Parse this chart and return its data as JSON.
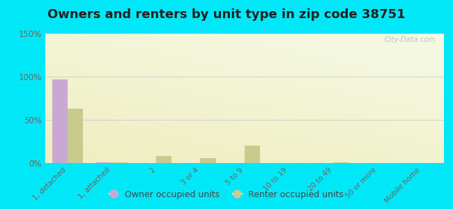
{
  "title": "Owners and renters by unit type in zip code 38751",
  "categories": [
    "1, detached",
    "1, attached",
    "2",
    "3 or 4",
    "5 to 9",
    "10 to 19",
    "20 to 49",
    "50 or more",
    "Mobile home"
  ],
  "owner_values": [
    97,
    1,
    0,
    0,
    0,
    0,
    0,
    0,
    0
  ],
  "renter_values": [
    63,
    1,
    8,
    6,
    20,
    0,
    1,
    0,
    0
  ],
  "owner_color": "#c9a8d4",
  "renter_color": "#c8ca8e",
  "bg_outer": "#00e8f8",
  "bg_plot_top_left": "#e8f5e2",
  "bg_plot_top_right": "#f5fff5",
  "bg_plot_bottom": "#f0f8d8",
  "ylim": [
    0,
    150
  ],
  "yticks": [
    0,
    50,
    100,
    150
  ],
  "ytick_labels": [
    "0%",
    "50%",
    "100%",
    "150%"
  ],
  "title_fontsize": 13,
  "bar_width": 0.35,
  "watermark": "City-Data.com"
}
